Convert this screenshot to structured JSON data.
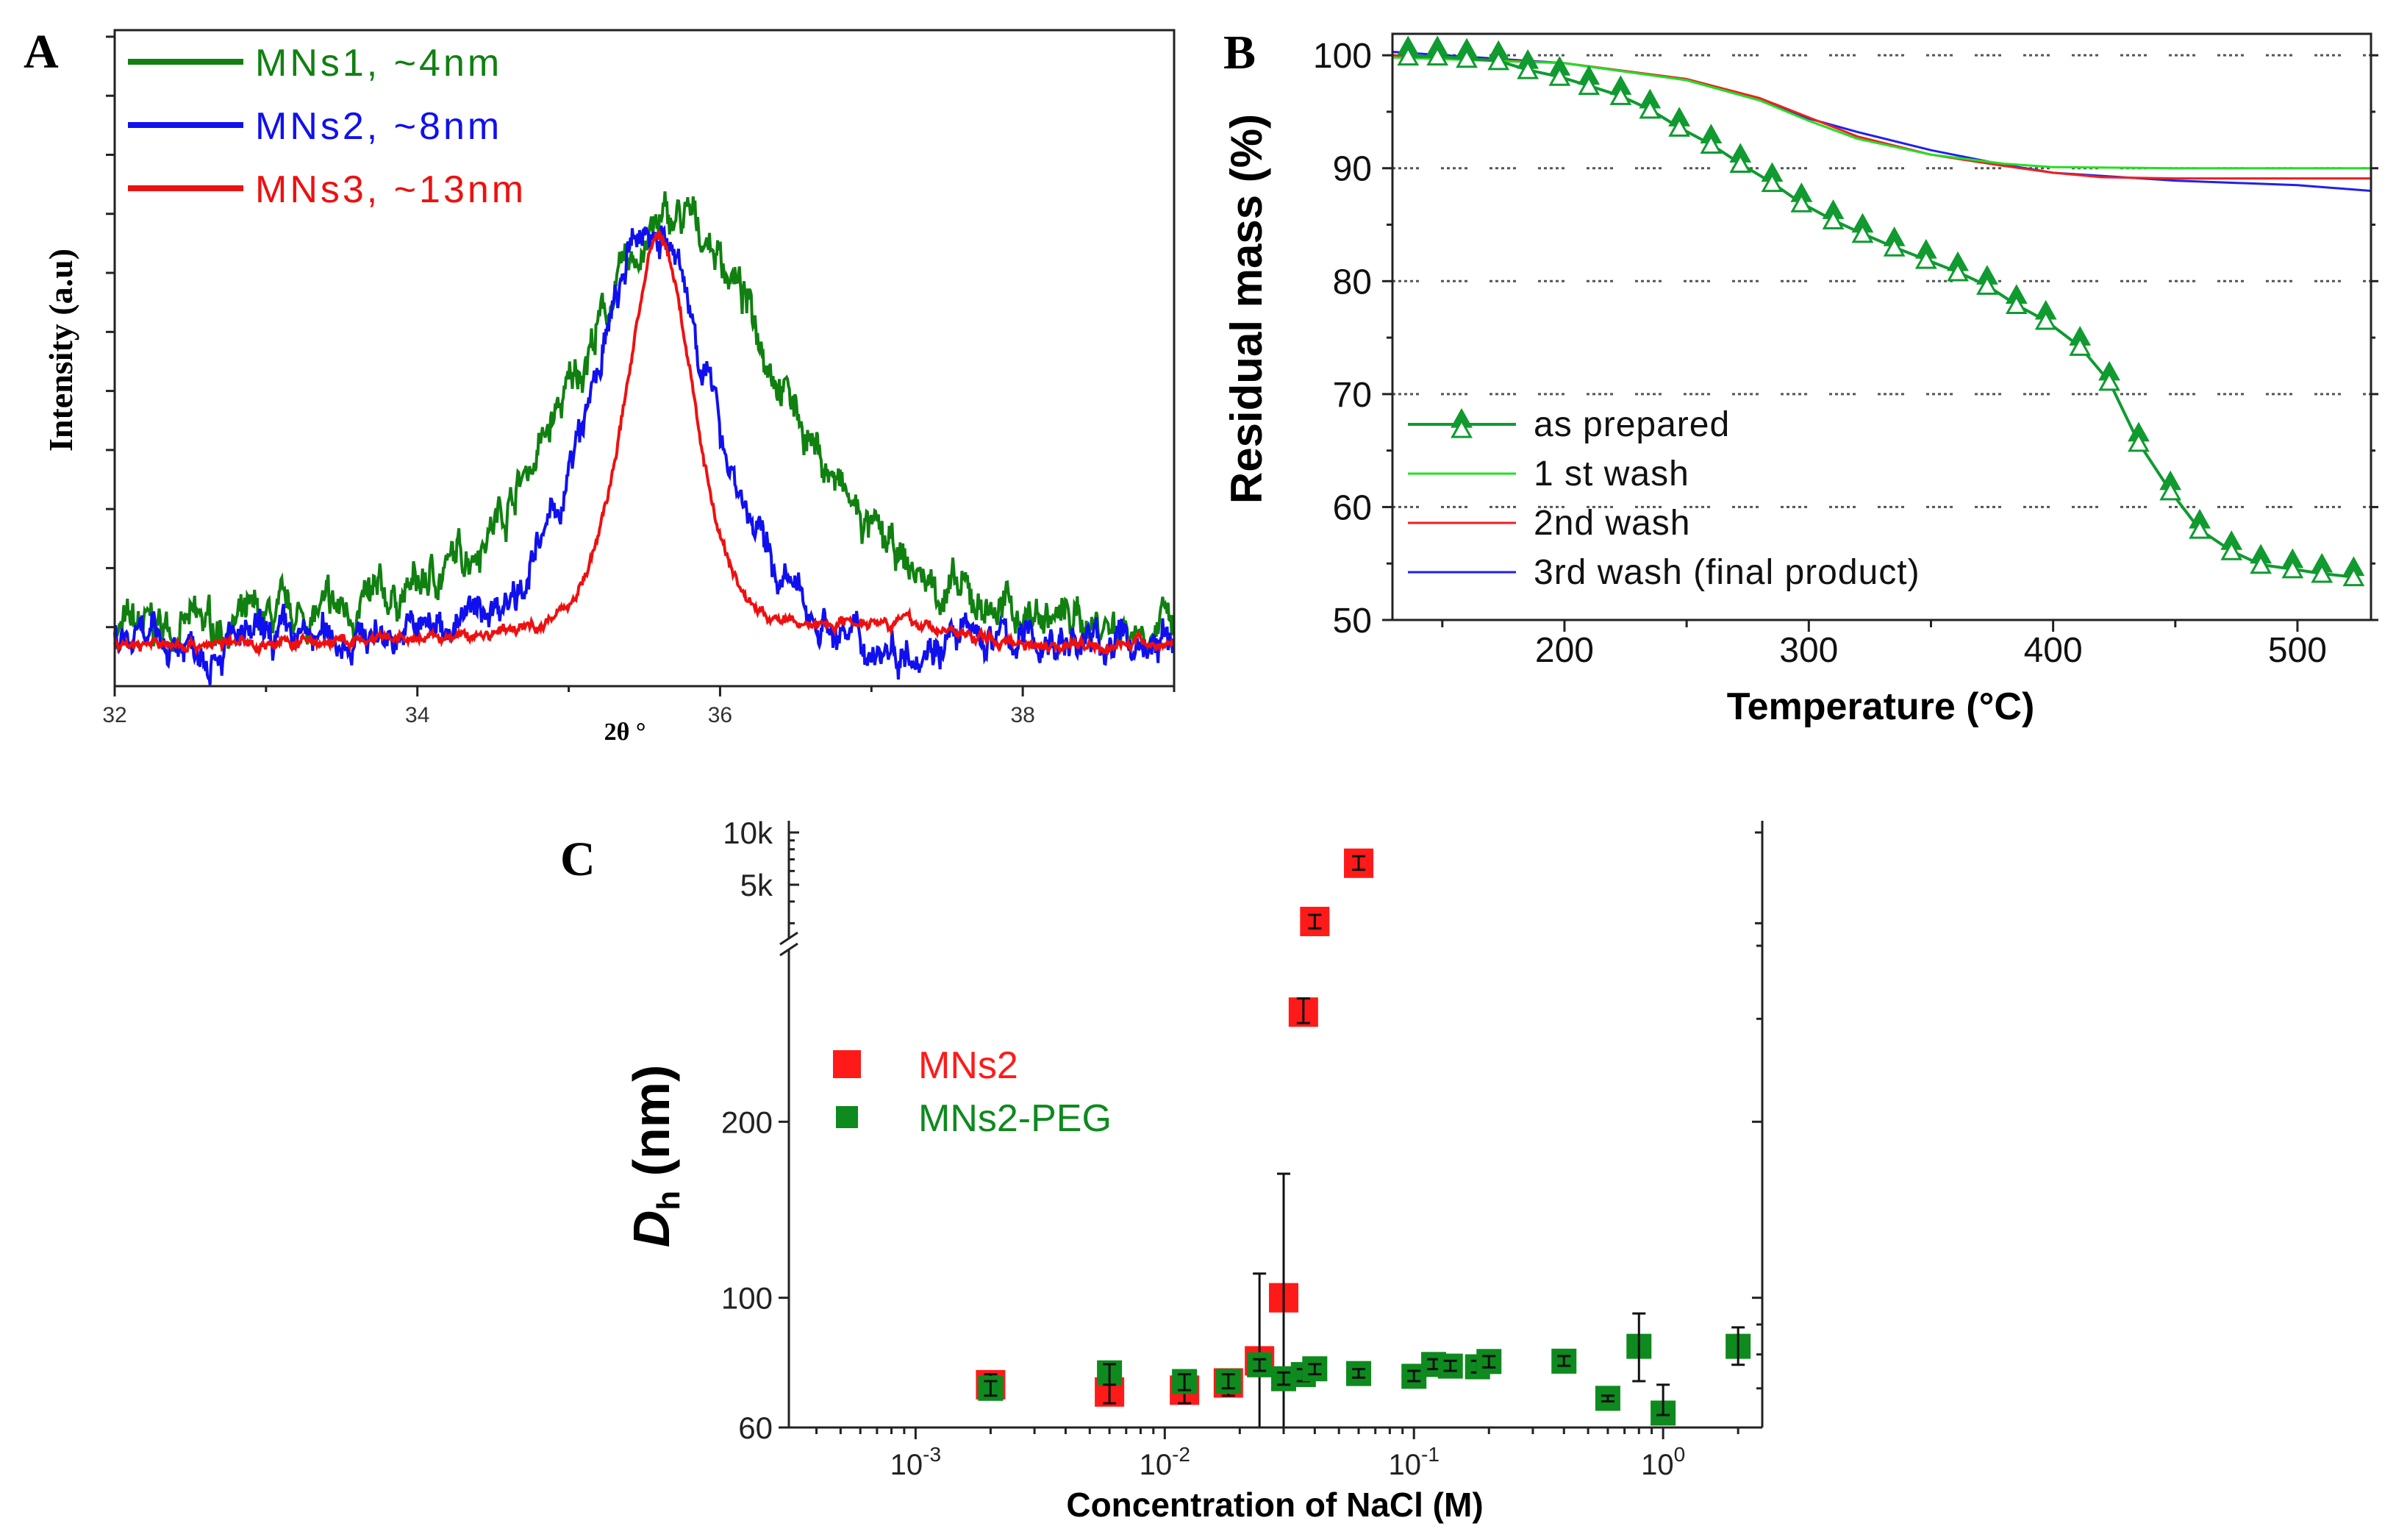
{
  "chart_data": [
    {
      "panel": "A",
      "type": "line",
      "panel_label": "A",
      "xlabel": "2θ °",
      "ylabel": "Intensity (a.u)",
      "xlim": [
        32,
        39
      ],
      "ylim": [
        0,
        1
      ],
      "xticks": [
        32,
        34,
        36,
        38
      ],
      "xtick_labels": [
        "32",
        "34",
        "36",
        "38"
      ],
      "legend_position": "top-left",
      "series": [
        {
          "name": "MNs1, ~4nm",
          "color": "#108010",
          "peak_center": 35.72,
          "fwhm": 1.7,
          "peak_height": 0.64,
          "baseline": 0.07,
          "noise": 0.028
        },
        {
          "name": "MNs2, ~8nm",
          "color": "#1010ee",
          "peak_center": 35.55,
          "fwhm": 0.95,
          "peak_height": 0.64,
          "baseline": 0.058,
          "noise": 0.026
        },
        {
          "name": "MNs3, ~13nm",
          "color": "#ee1010",
          "peak_center": 35.6,
          "fwhm": 0.55,
          "peak_height": 0.62,
          "baseline": 0.062,
          "noise": 0.008
        }
      ]
    },
    {
      "panel": "B",
      "type": "line",
      "panel_label": "B",
      "xlabel": "Temperature (°C)",
      "ylabel": "Residual mass (%)",
      "xlim": [
        129.6,
        530.1
      ],
      "ylim": [
        50,
        101.9
      ],
      "xticks": [
        200,
        300,
        400,
        500
      ],
      "yticks": [
        50,
        60,
        70,
        80,
        90,
        100
      ],
      "grid": "dotted horizontal",
      "legend_position": "bottom-left",
      "series": [
        {
          "name": "as prepared",
          "color": "#109a30",
          "marker": "triangle",
          "x": [
            136,
            148,
            160,
            173,
            185,
            198,
            210,
            223,
            235,
            247,
            260,
            272,
            285,
            297,
            310,
            322,
            335,
            348,
            361,
            373,
            385,
            397,
            411,
            423,
            435,
            448,
            460,
            473,
            485,
            498,
            510,
            523
          ],
          "y": [
            100.3,
            100.3,
            100.1,
            99.9,
            99.1,
            98.5,
            97.7,
            96.8,
            95.6,
            94.0,
            92.5,
            90.8,
            89.1,
            87.3,
            85.8,
            84.6,
            83.4,
            82.3,
            81.2,
            80.0,
            78.3,
            76.9,
            74.6,
            71.5,
            66.1,
            61.8,
            58.4,
            56.5,
            55.3,
            54.9,
            54.5,
            54.2
          ]
        },
        {
          "name": "1 st wash",
          "color": "#22e022",
          "x": [
            130,
            200,
            250,
            280,
            300,
            320,
            350,
            380,
            400,
            450,
            530
          ],
          "y": [
            99.8,
            99.3,
            97.8,
            96.0,
            94.2,
            92.6,
            91.2,
            90.4,
            90.1,
            90.0,
            90.0
          ]
        },
        {
          "name": "2nd wash",
          "color": "#ee2020",
          "x": [
            130,
            200,
            250,
            280,
            300,
            320,
            350,
            380,
            400,
            420,
            450,
            530
          ],
          "y": [
            100.0,
            99.3,
            97.9,
            96.2,
            94.5,
            92.8,
            91.2,
            90.2,
            89.6,
            89.2,
            89.1,
            89.1
          ]
        },
        {
          "name": "3rd wash (final product)",
          "color": "#2020ee",
          "x": [
            130,
            200,
            250,
            280,
            300,
            320,
            350,
            380,
            400,
            450,
            500,
            530
          ],
          "y": [
            100.3,
            99.3,
            97.8,
            96.0,
            94.4,
            93.2,
            91.6,
            90.3,
            89.6,
            88.9,
            88.5,
            88.0
          ]
        }
      ]
    },
    {
      "panel": "C",
      "type": "scatter",
      "panel_label": "C",
      "xlabel": "Concentration of NaCl (M)",
      "ylabel_main": "D",
      "ylabel_sub": "h",
      "ylabel_unit": " (nm)",
      "xscale": "log",
      "xlim": [
        0.00031,
        2.5
      ],
      "yscale": "log (broken axis)",
      "ylim_lower": [
        60,
        406
      ],
      "ylim_upper": [
        2200,
        11700
      ],
      "xtick_base": "10",
      "xtick_exponents": [
        "-3",
        "-2",
        "-1",
        "0"
      ],
      "ytick_labels_lower": [
        {
          "value": 60,
          "label": "60"
        },
        {
          "value": 100,
          "label": "100"
        },
        {
          "value": 200,
          "label": "200"
        }
      ],
      "ytick_labels_upper": [
        {
          "value": 5000,
          "label": "5k"
        },
        {
          "value": 10000,
          "label": "10k"
        }
      ],
      "legend_position": "center-left",
      "series": [
        {
          "name": "MNs2",
          "color": "#ff1a1a",
          "x": [
            0.002,
            0.006,
            0.012,
            0.018,
            0.024,
            0.03,
            0.036,
            0.04,
            0.06
          ],
          "y": [
            71,
            69,
            69.5,
            71.5,
            78,
            100,
            308,
            3070,
            6650
          ],
          "err_low": [
            67,
            66,
            66,
            68,
            55,
            55,
            295,
            2800,
            6100
          ],
          "err_high": [
            74,
            72,
            72,
            74,
            110,
            163,
            325,
            3350,
            7300
          ]
        },
        {
          "name": "MNs2-PEG",
          "color": "#0e8a1e",
          "x": [
            0.002,
            0.006,
            0.012,
            0.018,
            0.024,
            0.03,
            0.036,
            0.04,
            0.06,
            0.1,
            0.12,
            0.14,
            0.18,
            0.2,
            0.4,
            0.6,
            0.8,
            1.0,
            2.0
          ],
          "y": [
            70,
            74.4,
            71.9,
            72,
            76.8,
            72.7,
            73.9,
            75.6,
            74.2,
            73.4,
            76.9,
            76.4,
            76.2,
            77.8,
            77.9,
            67.3,
            82.6,
            63.5,
            82.6
          ],
          "err_low": [
            68,
            71,
            69.5,
            70,
            75,
            71,
            72,
            74,
            73,
            72,
            75.5,
            75,
            74.5,
            76,
            76.5,
            66.5,
            72,
            63,
            76.8
          ],
          "err_high": [
            72,
            77,
            74,
            74,
            78.5,
            74.5,
            75.5,
            77,
            75.5,
            75,
            78.5,
            78,
            78,
            79.5,
            79.5,
            68,
            94,
            71,
            89
          ]
        }
      ]
    }
  ]
}
